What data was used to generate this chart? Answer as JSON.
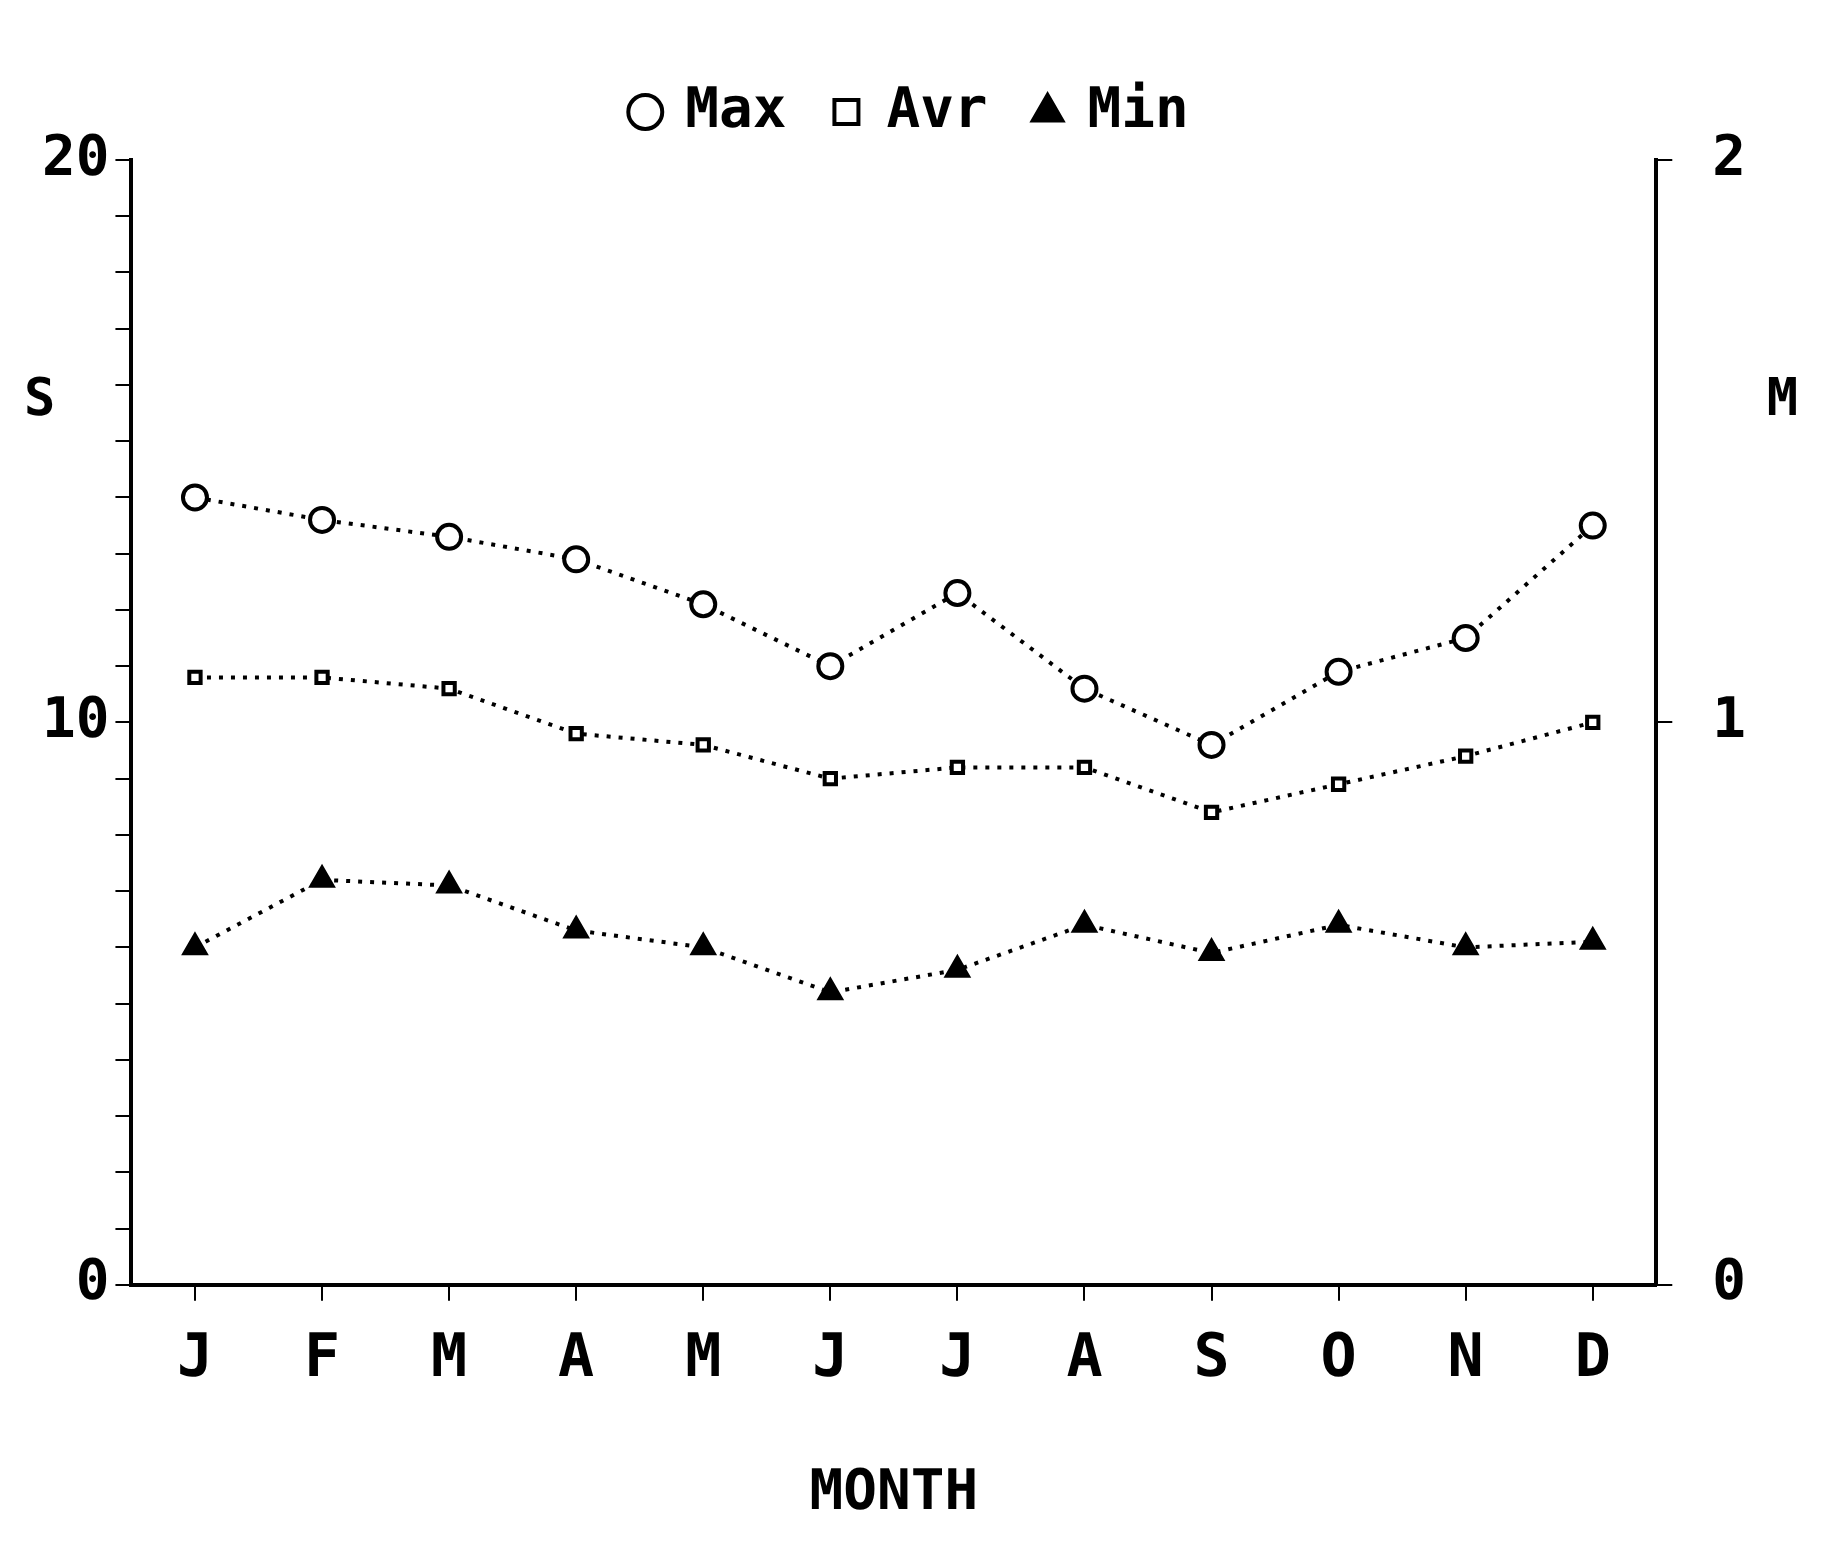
{
  "chart_data": {
    "type": "line",
    "xlabel": "MONTH",
    "ylabel": "S",
    "y2label": "M",
    "categories": [
      "J",
      "F",
      "M",
      "A",
      "M",
      "J",
      "J",
      "A",
      "S",
      "O",
      "N",
      "D"
    ],
    "series": [
      {
        "name": "Max",
        "color": "#000000",
        "marker": "circle",
        "values": [
          14.0,
          13.6,
          13.3,
          12.9,
          12.1,
          11.0,
          12.3,
          10.6,
          9.6,
          10.9,
          11.5,
          13.5
        ]
      },
      {
        "name": "Avr",
        "color": "#000000",
        "marker": "square",
        "values": [
          10.8,
          10.8,
          10.6,
          9.8,
          9.6,
          9.0,
          9.2,
          9.2,
          8.4,
          8.9,
          9.4,
          10.0
        ]
      },
      {
        "name": "Min",
        "color": "#000000",
        "marker": "triangle",
        "values": [
          6.0,
          7.2,
          7.1,
          6.3,
          6.0,
          5.2,
          5.6,
          6.4,
          5.9,
          6.4,
          6.0,
          6.1
        ]
      }
    ],
    "ylim": [
      0,
      20
    ],
    "yticks": [
      0,
      {
        "value": 1,
        "label": null
      },
      {
        "value": 2,
        "label": null
      },
      {
        "value": 3,
        "label": null
      },
      {
        "value": 4,
        "label": null
      },
      {
        "value": 5,
        "label": null
      },
      {
        "value": 6,
        "label": null
      },
      {
        "value": 7,
        "label": null
      },
      {
        "value": 8,
        "label": null
      },
      {
        "value": 9,
        "label": null
      },
      10,
      {
        "value": 11,
        "label": null
      },
      {
        "value": 12,
        "label": null
      },
      {
        "value": 13,
        "label": null
      },
      {
        "value": 14,
        "label": null
      },
      {
        "value": 15,
        "label": null
      },
      {
        "value": 16,
        "label": null
      },
      {
        "value": 17,
        "label": null
      },
      {
        "value": 18,
        "label": null
      },
      {
        "value": 19,
        "label": null
      },
      20
    ],
    "y2lim": [
      0,
      2
    ],
    "y2ticks": [
      0,
      1,
      2
    ],
    "grid": false,
    "legend": "top",
    "line_style": "dotted"
  }
}
